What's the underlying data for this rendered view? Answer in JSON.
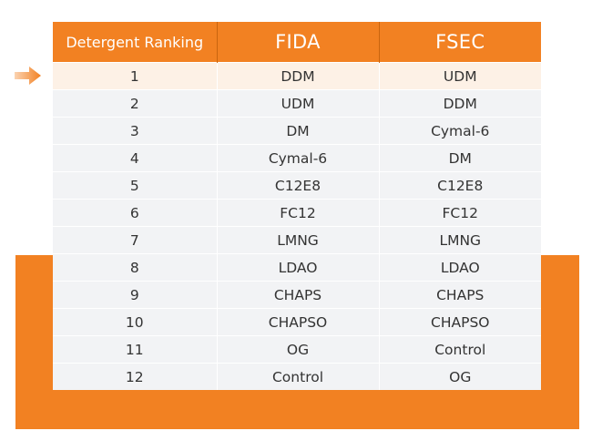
{
  "table": {
    "headers": [
      "Detergent Ranking",
      "FIDA",
      "FSEC"
    ],
    "rows": [
      [
        "1",
        "DDM",
        "UDM"
      ],
      [
        "2",
        "UDM",
        "DDM"
      ],
      [
        "3",
        "DM",
        "Cymal-6"
      ],
      [
        "4",
        "Cymal-6",
        "DM"
      ],
      [
        "5",
        "C12E8",
        "C12E8"
      ],
      [
        "6",
        "FC12",
        "FC12"
      ],
      [
        "7",
        "LMNG",
        "LMNG"
      ],
      [
        "8",
        "LDAO",
        "LDAO"
      ],
      [
        "9",
        "CHAPS",
        "CHAPS"
      ],
      [
        "10",
        "CHAPSO",
        "CHAPSO"
      ],
      [
        "11",
        "OG",
        "Control"
      ],
      [
        "12",
        "Control",
        "OG"
      ]
    ],
    "highlighted_row": 1
  },
  "icons": {
    "row_pointer": "arrow-right-icon"
  },
  "colors": {
    "accent": "#f28122",
    "row_bg": "#f2f3f5",
    "highlight_bg": "#fdf1e6",
    "text": "#333333",
    "header_text": "#ffffff"
  }
}
